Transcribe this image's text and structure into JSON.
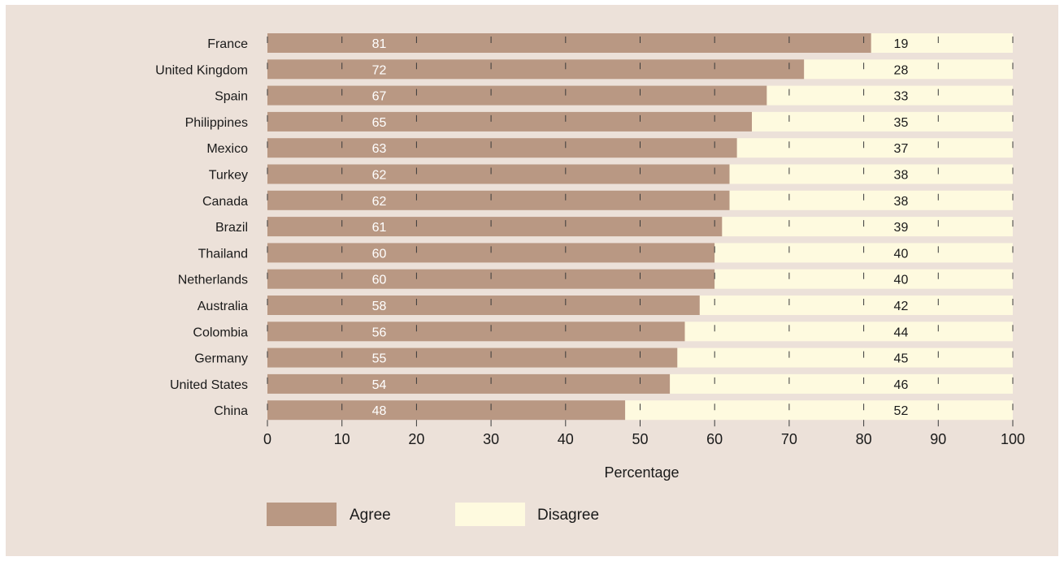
{
  "chart_data": {
    "type": "bar",
    "orientation": "horizontal",
    "stacked": true,
    "categories": [
      "France",
      "United Kingdom",
      "Spain",
      "Philippines",
      "Mexico",
      "Turkey",
      "Canada",
      "Brazil",
      "Thailand",
      "Netherlands",
      "Australia",
      "Colombia",
      "Germany",
      "United States",
      "China"
    ],
    "series": [
      {
        "name": "Agree",
        "values": [
          81,
          72,
          67,
          65,
          63,
          62,
          62,
          61,
          60,
          60,
          58,
          56,
          55,
          54,
          48
        ],
        "color": "#b99883"
      },
      {
        "name": "Disagree",
        "values": [
          19,
          28,
          33,
          35,
          37,
          38,
          38,
          39,
          40,
          40,
          42,
          44,
          45,
          46,
          52
        ],
        "color": "#fefadf"
      }
    ],
    "xlabel": "Percentage",
    "xlim": [
      0,
      100
    ],
    "xticks": [
      "0",
      "10",
      "20",
      "30",
      "40",
      "50",
      "60",
      "70",
      "80",
      "90",
      "100"
    ],
    "grid": true,
    "legend": "bottom"
  },
  "colors": {
    "background": "#ece1d9",
    "grid": "#3a3a3a"
  }
}
